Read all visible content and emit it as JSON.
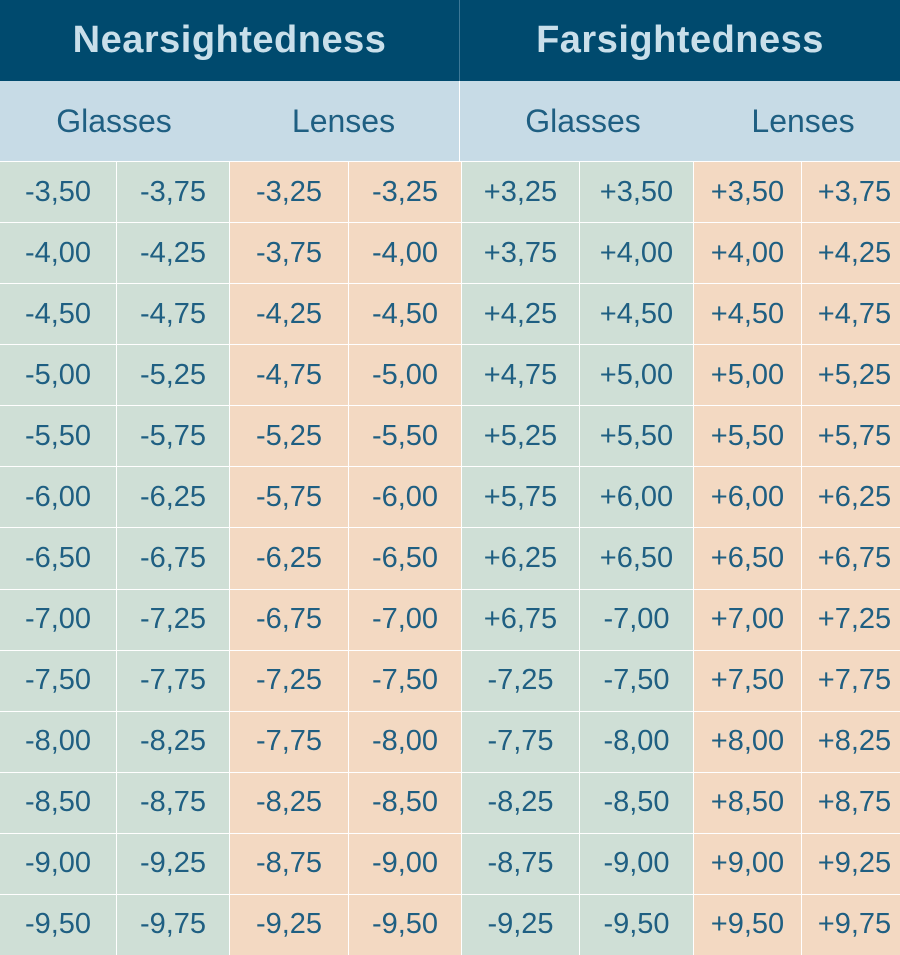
{
  "headers": {
    "nearsightedness": "Nearsightedness",
    "farsightedness": "Farsightedness"
  },
  "subheaders": {
    "near_glasses": "Glasses",
    "near_lenses": "Lenses",
    "far_glasses": "Glasses",
    "far_lenses": "Lenses"
  },
  "colors": {
    "header_bg": "#004a6e",
    "subheader_bg": "#c7dbe6",
    "glasses_bg": "#cfdfd6",
    "lenses_bg": "#f3d9c2",
    "text": "#1f5f82"
  },
  "rows": [
    [
      "-3,50",
      "-3,75",
      "-3,25",
      "-3,25",
      "+3,25",
      "+3,50",
      "+3,50",
      "+3,75"
    ],
    [
      "-4,00",
      "-4,25",
      "-3,75",
      "-4,00",
      "+3,75",
      "+4,00",
      "+4,00",
      "+4,25"
    ],
    [
      "-4,50",
      "-4,75",
      "-4,25",
      "-4,50",
      "+4,25",
      "+4,50",
      "+4,50",
      "+4,75"
    ],
    [
      "-5,00",
      "-5,25",
      "-4,75",
      "-5,00",
      "+4,75",
      "+5,00",
      "+5,00",
      "+5,25"
    ],
    [
      "-5,50",
      "-5,75",
      "-5,25",
      "-5,50",
      "+5,25",
      "+5,50",
      "+5,50",
      "+5,75"
    ],
    [
      "-6,00",
      "-6,25",
      "-5,75",
      "-6,00",
      "+5,75",
      "+6,00",
      "+6,00",
      "+6,25"
    ],
    [
      "-6,50",
      "-6,75",
      "-6,25",
      "-6,50",
      "+6,25",
      "+6,50",
      "+6,50",
      "+6,75"
    ],
    [
      "-7,00",
      "-7,25",
      "-6,75",
      "-7,00",
      "+6,75",
      "-7,00",
      "+7,00",
      "+7,25"
    ],
    [
      "-7,50",
      "-7,75",
      "-7,25",
      "-7,50",
      "-7,25",
      "-7,50",
      "+7,50",
      "+7,75"
    ],
    [
      "-8,00",
      "-8,25",
      "-7,75",
      "-8,00",
      "-7,75",
      "-8,00",
      "+8,00",
      "+8,25"
    ],
    [
      "-8,50",
      "-8,75",
      "-8,25",
      "-8,50",
      "-8,25",
      "-8,50",
      "+8,50",
      "+8,75"
    ],
    [
      "-9,00",
      "-9,25",
      "-8,75",
      "-9,00",
      "-8,75",
      "-9,00",
      "+9,00",
      "+9,25"
    ],
    [
      "-9,50",
      "-9,75",
      "-9,25",
      "-9,50",
      "-9,25",
      "-9,50",
      "+9,50",
      "+9,75"
    ]
  ]
}
